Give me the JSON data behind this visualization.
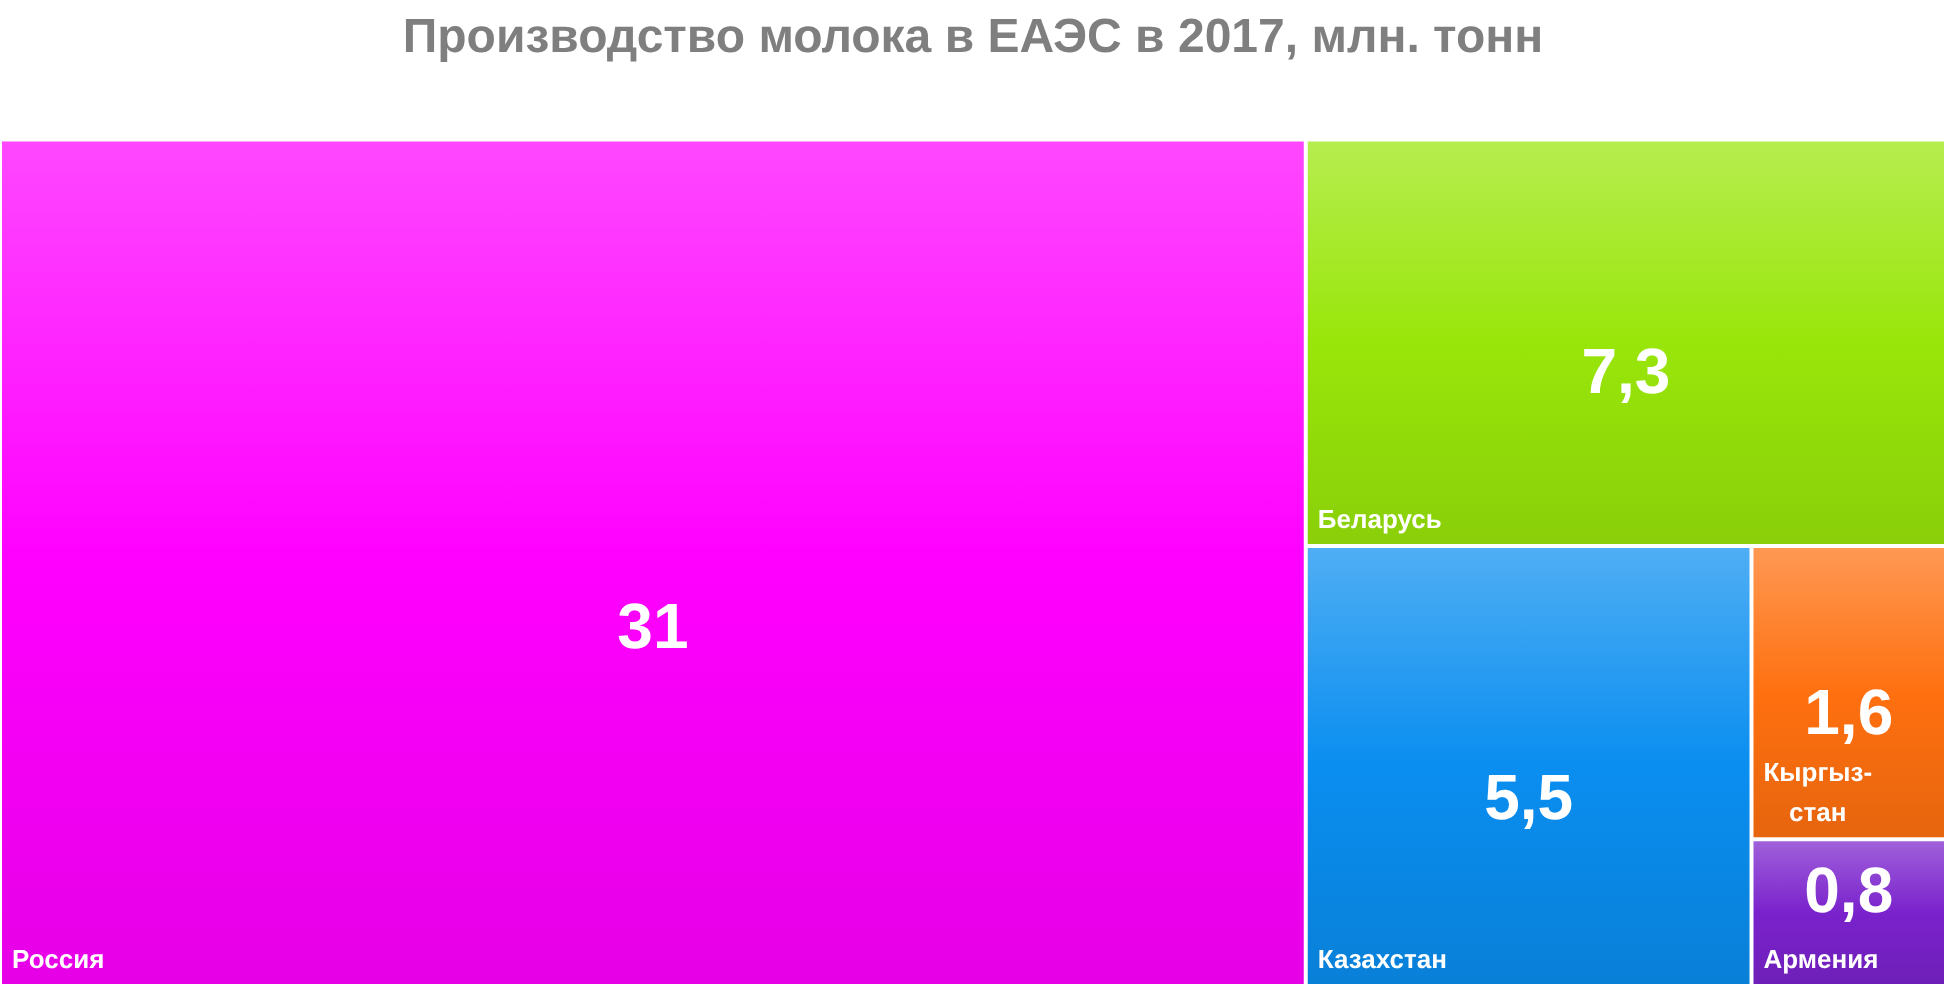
{
  "chart_data": {
    "type": "other",
    "title": "Производство молока в ЕАЭС в 2017, млн. тонн",
    "categories": [
      "Россия",
      "Беларусь",
      "Казахстан",
      "Кыргыз-стан",
      "Армения"
    ],
    "values": [
      31,
      7.3,
      5.5,
      1.6,
      0.8
    ],
    "colors": [
      "#ff00ff",
      "#99e60a",
      "#0a8ef0",
      "#ff7010",
      "#7a22cc"
    ],
    "value_labels": [
      "31",
      "7,3",
      "5,5",
      "1,6",
      "0,8"
    ]
  }
}
